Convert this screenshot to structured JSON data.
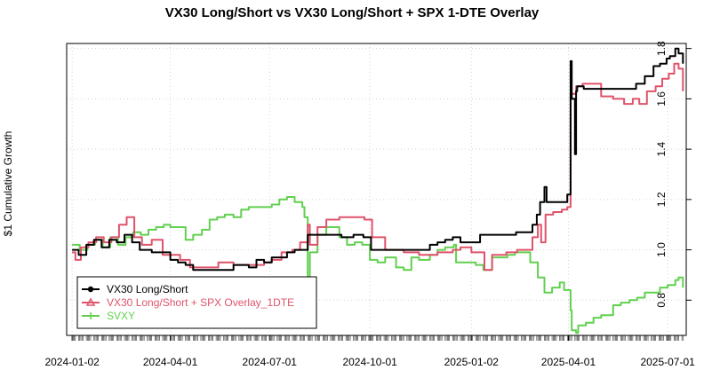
{
  "chart_data": {
    "type": "line",
    "title": "VX30 Long/Short vs VX30 Long/Short + SPX 1-DTE Overlay",
    "xlabel": "",
    "ylabel": "$1 Cumulative Growth",
    "x_tick_labels": [
      "2024-01-02",
      "2024-04-01",
      "2024-07-01",
      "2024-10-01",
      "2025-01-02",
      "2025-04-01",
      "2025-07-01"
    ],
    "x_tick_dates": [
      "2024-01-02",
      "2024-04-01",
      "2024-07-01",
      "2024-10-01",
      "2025-01-02",
      "2025-04-01",
      "2025-07-01"
    ],
    "x_range": [
      "2023-12-28",
      "2025-07-18"
    ],
    "y_ticks": [
      "0.8",
      "1.0",
      "1.2",
      "1.4",
      "1.6",
      "1.8"
    ],
    "y_tick_values": [
      0.8,
      1.0,
      1.2,
      1.4,
      1.6,
      1.8
    ],
    "ylim": [
      0.66,
      1.82
    ],
    "grid": true,
    "legend_position": "bottom-left",
    "series": [
      {
        "name": "VX30 Long/Short",
        "color": "#000000",
        "marker": "circle",
        "points": [
          [
            "2024-01-02",
            1.0
          ],
          [
            "2024-01-08",
            0.98
          ],
          [
            "2024-01-15",
            1.02
          ],
          [
            "2024-01-22",
            1.04
          ],
          [
            "2024-01-29",
            1.01
          ],
          [
            "2024-02-05",
            1.04
          ],
          [
            "2024-02-12",
            1.03
          ],
          [
            "2024-02-19",
            1.06
          ],
          [
            "2024-02-26",
            1.03
          ],
          [
            "2024-03-04",
            1.0
          ],
          [
            "2024-03-15",
            0.99
          ],
          [
            "2024-03-25",
            0.99
          ],
          [
            "2024-04-01",
            0.96
          ],
          [
            "2024-04-08",
            0.95
          ],
          [
            "2024-04-15",
            0.94
          ],
          [
            "2024-04-22",
            0.92
          ],
          [
            "2024-05-01",
            0.92
          ],
          [
            "2024-05-15",
            0.92
          ],
          [
            "2024-05-29",
            0.94
          ],
          [
            "2024-06-05",
            0.94
          ],
          [
            "2024-06-12",
            0.93
          ],
          [
            "2024-06-19",
            0.96
          ],
          [
            "2024-06-26",
            0.95
          ],
          [
            "2024-07-03",
            0.97
          ],
          [
            "2024-07-10",
            0.97
          ],
          [
            "2024-07-17",
            0.99
          ],
          [
            "2024-07-24",
            1.0
          ],
          [
            "2024-08-01",
            1.0
          ],
          [
            "2024-08-05",
            1.06
          ],
          [
            "2024-08-15",
            1.06
          ],
          [
            "2024-08-26",
            1.06
          ],
          [
            "2024-09-05",
            1.05
          ],
          [
            "2024-09-16",
            1.06
          ],
          [
            "2024-09-25",
            1.05
          ],
          [
            "2024-10-01",
            1.05
          ],
          [
            "2024-10-02",
            1.0
          ],
          [
            "2024-10-15",
            1.0
          ],
          [
            "2024-11-01",
            1.0
          ],
          [
            "2024-11-15",
            1.0
          ],
          [
            "2024-11-25",
            1.02
          ],
          [
            "2024-12-02",
            1.03
          ],
          [
            "2024-12-09",
            1.04
          ],
          [
            "2024-12-16",
            1.05
          ],
          [
            "2024-12-23",
            1.03
          ],
          [
            "2024-12-30",
            1.03
          ],
          [
            "2025-01-07",
            1.03
          ],
          [
            "2025-01-10",
            1.06
          ],
          [
            "2025-01-21",
            1.06
          ],
          [
            "2025-02-03",
            1.06
          ],
          [
            "2025-02-12",
            1.07
          ],
          [
            "2025-02-20",
            1.07
          ],
          [
            "2025-02-27",
            1.1
          ],
          [
            "2025-03-03",
            1.14
          ],
          [
            "2025-03-06",
            1.19
          ],
          [
            "2025-03-10",
            1.25
          ],
          [
            "2025-03-12",
            1.19
          ],
          [
            "2025-03-20",
            1.19
          ],
          [
            "2025-03-28",
            1.19
          ],
          [
            "2025-03-31",
            1.22
          ],
          [
            "2025-04-03",
            1.75
          ],
          [
            "2025-04-04",
            1.6
          ],
          [
            "2025-04-07",
            1.38
          ],
          [
            "2025-04-08",
            1.63
          ],
          [
            "2025-04-09",
            1.65
          ],
          [
            "2025-04-15",
            1.64
          ],
          [
            "2025-05-01",
            1.64
          ],
          [
            "2025-05-15",
            1.64
          ],
          [
            "2025-05-27",
            1.64
          ],
          [
            "2025-06-02",
            1.66
          ],
          [
            "2025-06-10",
            1.69
          ],
          [
            "2025-06-18",
            1.73
          ],
          [
            "2025-06-24",
            1.74
          ],
          [
            "2025-06-30",
            1.76
          ],
          [
            "2025-07-03",
            1.77
          ],
          [
            "2025-07-08",
            1.8
          ],
          [
            "2025-07-11",
            1.78
          ],
          [
            "2025-07-15",
            1.74
          ]
        ]
      },
      {
        "name": "VX30 Long/Short + SPX Overlay_1DTE",
        "color": "#DF536B",
        "marker": "triangle",
        "points": [
          [
            "2024-01-02",
            0.99
          ],
          [
            "2024-01-05",
            0.96
          ],
          [
            "2024-01-10",
            1.01
          ],
          [
            "2024-01-17",
            1.03
          ],
          [
            "2024-01-24",
            1.05
          ],
          [
            "2024-01-31",
            1.03
          ],
          [
            "2024-02-07",
            1.05
          ],
          [
            "2024-02-14",
            1.1
          ],
          [
            "2024-02-21",
            1.13
          ],
          [
            "2024-02-28",
            1.05
          ],
          [
            "2024-03-06",
            1.02
          ],
          [
            "2024-03-15",
            1.04
          ],
          [
            "2024-03-25",
            0.98
          ],
          [
            "2024-04-01",
            0.98
          ],
          [
            "2024-04-10",
            0.96
          ],
          [
            "2024-04-19",
            0.93
          ],
          [
            "2024-05-01",
            0.93
          ],
          [
            "2024-05-15",
            0.95
          ],
          [
            "2024-05-29",
            0.94
          ],
          [
            "2024-06-12",
            0.94
          ],
          [
            "2024-06-26",
            0.95
          ],
          [
            "2024-07-03",
            0.96
          ],
          [
            "2024-07-12",
            0.99
          ],
          [
            "2024-07-22",
            1.0
          ],
          [
            "2024-07-29",
            1.03
          ],
          [
            "2024-08-05",
            1.1
          ],
          [
            "2024-08-07",
            1.02
          ],
          [
            "2024-08-14",
            1.09
          ],
          [
            "2024-08-22",
            1.12
          ],
          [
            "2024-09-03",
            1.13
          ],
          [
            "2024-09-16",
            1.13
          ],
          [
            "2024-09-26",
            1.12
          ],
          [
            "2024-10-01",
            1.12
          ],
          [
            "2024-10-03",
            1.05
          ],
          [
            "2024-10-15",
            1.0
          ],
          [
            "2024-11-01",
            0.99
          ],
          [
            "2024-11-15",
            0.98
          ],
          [
            "2024-12-02",
            0.99
          ],
          [
            "2024-12-16",
            1.0
          ],
          [
            "2024-12-23",
            1.01
          ],
          [
            "2025-01-02",
            0.99
          ],
          [
            "2025-01-10",
            0.99
          ],
          [
            "2025-01-14",
            0.92
          ],
          [
            "2025-01-21",
            0.98
          ],
          [
            "2025-02-03",
            0.99
          ],
          [
            "2025-02-13",
            1.0
          ],
          [
            "2025-02-21",
            1.0
          ],
          [
            "2025-02-27",
            1.05
          ],
          [
            "2025-03-04",
            1.1
          ],
          [
            "2025-03-07",
            1.03
          ],
          [
            "2025-03-11",
            1.14
          ],
          [
            "2025-03-18",
            1.15
          ],
          [
            "2025-03-26",
            1.16
          ],
          [
            "2025-03-31",
            1.17
          ],
          [
            "2025-04-03",
            1.62
          ],
          [
            "2025-04-08",
            1.65
          ],
          [
            "2025-04-14",
            1.66
          ],
          [
            "2025-04-23",
            1.66
          ],
          [
            "2025-05-01",
            1.61
          ],
          [
            "2025-05-12",
            1.6
          ],
          [
            "2025-05-22",
            1.58
          ],
          [
            "2025-05-30",
            1.6
          ],
          [
            "2025-06-05",
            1.58
          ],
          [
            "2025-06-12",
            1.63
          ],
          [
            "2025-06-20",
            1.65
          ],
          [
            "2025-06-26",
            1.68
          ],
          [
            "2025-07-02",
            1.7
          ],
          [
            "2025-07-07",
            1.74
          ],
          [
            "2025-07-11",
            1.72
          ],
          [
            "2025-07-15",
            1.63
          ]
        ]
      },
      {
        "name": "SVXY",
        "color": "#61D04F",
        "marker": "plus",
        "points": [
          [
            "2024-01-02",
            1.02
          ],
          [
            "2024-01-09",
            1.0
          ],
          [
            "2024-01-16",
            1.02
          ],
          [
            "2024-01-23",
            1.04
          ],
          [
            "2024-01-30",
            1.01
          ],
          [
            "2024-02-06",
            1.05
          ],
          [
            "2024-02-13",
            1.02
          ],
          [
            "2024-02-20",
            1.05
          ],
          [
            "2024-02-27",
            1.07
          ],
          [
            "2024-03-05",
            1.06
          ],
          [
            "2024-03-12",
            1.08
          ],
          [
            "2024-03-19",
            1.09
          ],
          [
            "2024-03-26",
            1.1
          ],
          [
            "2024-04-01",
            1.09
          ],
          [
            "2024-04-15",
            1.04
          ],
          [
            "2024-04-22",
            1.06
          ],
          [
            "2024-04-30",
            1.08
          ],
          [
            "2024-05-07",
            1.12
          ],
          [
            "2024-05-14",
            1.13
          ],
          [
            "2024-05-21",
            1.14
          ],
          [
            "2024-05-29",
            1.13
          ],
          [
            "2024-06-05",
            1.16
          ],
          [
            "2024-06-12",
            1.17
          ],
          [
            "2024-06-20",
            1.17
          ],
          [
            "2024-06-27",
            1.17
          ],
          [
            "2024-07-03",
            1.18
          ],
          [
            "2024-07-10",
            1.2
          ],
          [
            "2024-07-17",
            1.21
          ],
          [
            "2024-07-24",
            1.19
          ],
          [
            "2024-07-31",
            1.17
          ],
          [
            "2024-08-02",
            1.13
          ],
          [
            "2024-08-05",
            0.85
          ],
          [
            "2024-08-07",
            0.99
          ],
          [
            "2024-08-14",
            1.06
          ],
          [
            "2024-08-22",
            1.09
          ],
          [
            "2024-09-03",
            1.05
          ],
          [
            "2024-09-10",
            1.02
          ],
          [
            "2024-09-17",
            1.03
          ],
          [
            "2024-09-24",
            1.02
          ],
          [
            "2024-10-01",
            0.96
          ],
          [
            "2024-10-08",
            0.95
          ],
          [
            "2024-10-15",
            0.97
          ],
          [
            "2024-10-25",
            0.93
          ],
          [
            "2024-11-01",
            0.92
          ],
          [
            "2024-11-08",
            0.97
          ],
          [
            "2024-11-15",
            0.96
          ],
          [
            "2024-11-25",
            0.98
          ],
          [
            "2024-12-02",
            1.0
          ],
          [
            "2024-12-09",
            1.01
          ],
          [
            "2024-12-17",
            1.02
          ],
          [
            "2024-12-19",
            0.95
          ],
          [
            "2024-12-27",
            0.95
          ],
          [
            "2025-01-06",
            0.94
          ],
          [
            "2025-01-13",
            0.92
          ],
          [
            "2025-01-21",
            0.97
          ],
          [
            "2025-01-28",
            0.97
          ],
          [
            "2025-02-04",
            0.98
          ],
          [
            "2025-02-11",
            0.99
          ],
          [
            "2025-02-18",
            0.99
          ],
          [
            "2025-02-25",
            0.95
          ],
          [
            "2025-03-04",
            0.89
          ],
          [
            "2025-03-10",
            0.83
          ],
          [
            "2025-03-17",
            0.85
          ],
          [
            "2025-03-24",
            0.87
          ],
          [
            "2025-03-28",
            0.84
          ],
          [
            "2025-04-03",
            0.76
          ],
          [
            "2025-04-04",
            0.68
          ],
          [
            "2025-04-08",
            0.67
          ],
          [
            "2025-04-10",
            0.7
          ],
          [
            "2025-04-17",
            0.71
          ],
          [
            "2025-04-24",
            0.73
          ],
          [
            "2025-05-01",
            0.74
          ],
          [
            "2025-05-12",
            0.78
          ],
          [
            "2025-05-19",
            0.79
          ],
          [
            "2025-05-27",
            0.8
          ],
          [
            "2025-06-03",
            0.81
          ],
          [
            "2025-06-10",
            0.83
          ],
          [
            "2025-06-17",
            0.83
          ],
          [
            "2025-06-24",
            0.85
          ],
          [
            "2025-07-01",
            0.86
          ],
          [
            "2025-07-08",
            0.88
          ],
          [
            "2025-07-11",
            0.89
          ],
          [
            "2025-07-15",
            0.85
          ]
        ]
      }
    ]
  }
}
